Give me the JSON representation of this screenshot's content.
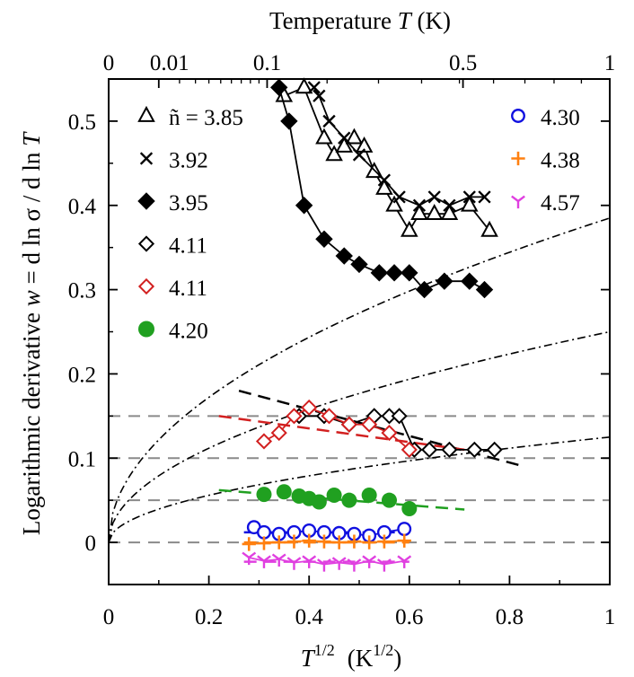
{
  "chart_data": {
    "type": "scatter",
    "title": "",
    "xlabel": {
      "base": "T",
      "exp": "1/2",
      "unit": "(K",
      "unit_exp": "1/2",
      "unit_close": ")"
    },
    "ylabel": {
      "prefix": "Logarithmic derivative  ",
      "w": "w",
      "rest": " = d ln σ  / d ln ",
      "T": "T"
    },
    "top_axis_label": {
      "prefix": "Temperature ",
      "T": "T",
      "unit": " (K)"
    },
    "xlim": [
      0,
      1
    ],
    "ylim": [
      -0.05,
      0.55
    ],
    "x_ticks": [
      0,
      0.2,
      0.4,
      0.6,
      0.8,
      1
    ],
    "x_tick_labels": [
      "0",
      "0.2",
      "0.4",
      "0.6",
      "0.8",
      "1"
    ],
    "y_ticks": [
      0,
      0.1,
      0.2,
      0.3,
      0.4,
      0.5
    ],
    "y_tick_labels": [
      "0",
      "0.1",
      "0.2",
      "0.3",
      "0.4",
      "0.5"
    ],
    "top_ticks": [
      0,
      0.01,
      0.1,
      0.5,
      1
    ],
    "top_tick_labels": [
      "0",
      "0.01",
      "0.1",
      "0.5",
      "1"
    ],
    "reference_lines_y": [
      0,
      0.05,
      0.1,
      0.15
    ],
    "sqrt_curves_coefficient": [
      0.385,
      0.25,
      0.125
    ],
    "series": [
      {
        "name": "ñ = 3.85",
        "marker": "triangle",
        "color": "#000000",
        "connected": true,
        "x": [
          0.35,
          0.39,
          0.43,
          0.45,
          0.47,
          0.49,
          0.51,
          0.53,
          0.55,
          0.57,
          0.6,
          0.62,
          0.65,
          0.68,
          0.72,
          0.76
        ],
        "y": [
          0.53,
          0.54,
          0.48,
          0.46,
          0.47,
          0.48,
          0.47,
          0.44,
          0.42,
          0.4,
          0.37,
          0.39,
          0.39,
          0.39,
          0.4,
          0.37
        ]
      },
      {
        "name": "3.92",
        "marker": "cross",
        "color": "#000000",
        "connected": true,
        "x": [
          0.41,
          0.42,
          0.44,
          0.47,
          0.5,
          0.55,
          0.58,
          0.62,
          0.65,
          0.68,
          0.72,
          0.75
        ],
        "y": [
          0.54,
          0.53,
          0.5,
          0.48,
          0.46,
          0.43,
          0.41,
          0.4,
          0.41,
          0.4,
          0.41,
          0.41
        ]
      },
      {
        "name": "3.95",
        "marker": "diamond-filled",
        "color": "#000000",
        "connected": true,
        "x": [
          0.34,
          0.36,
          0.39,
          0.43,
          0.47,
          0.5,
          0.54,
          0.57,
          0.6,
          0.63,
          0.67,
          0.72,
          0.75
        ],
        "y": [
          0.54,
          0.5,
          0.4,
          0.36,
          0.34,
          0.33,
          0.32,
          0.32,
          0.32,
          0.3,
          0.31,
          0.31,
          0.3
        ]
      },
      {
        "name": "4.11",
        "marker": "diamond-open",
        "color": "#000000",
        "connected": true,
        "x": [
          0.38,
          0.43,
          0.48,
          0.53,
          0.56,
          0.58,
          0.61,
          0.64,
          0.68,
          0.73,
          0.77
        ],
        "y": [
          0.15,
          0.15,
          0.14,
          0.15,
          0.15,
          0.15,
          0.11,
          0.11,
          0.11,
          0.11,
          0.11
        ]
      },
      {
        "name": "4.11",
        "marker": "diamond-open",
        "color": "#d22020",
        "connected": true,
        "x": [
          0.31,
          0.34,
          0.37,
          0.4,
          0.44,
          0.48,
          0.52,
          0.56,
          0.6
        ],
        "y": [
          0.12,
          0.13,
          0.15,
          0.16,
          0.15,
          0.14,
          0.14,
          0.13,
          0.11
        ]
      },
      {
        "name": "4.20",
        "marker": "circle-filled",
        "color": "#20a020",
        "connected": false,
        "x": [
          0.31,
          0.35,
          0.38,
          0.4,
          0.42,
          0.45,
          0.48,
          0.52,
          0.56,
          0.6
        ],
        "y": [
          0.057,
          0.06,
          0.055,
          0.052,
          0.048,
          0.056,
          0.05,
          0.056,
          0.05,
          0.04
        ]
      },
      {
        "name": "4.30",
        "marker": "circle-open",
        "color": "#1010e0",
        "connected": true,
        "x": [
          0.29,
          0.31,
          0.34,
          0.37,
          0.4,
          0.43,
          0.46,
          0.49,
          0.52,
          0.55,
          0.59
        ],
        "y": [
          0.018,
          0.012,
          0.01,
          0.012,
          0.014,
          0.012,
          0.011,
          0.01,
          0.008,
          0.012,
          0.016
        ]
      },
      {
        "name": "4.38",
        "marker": "plus",
        "color": "#ff8010",
        "connected": true,
        "x": [
          0.28,
          0.31,
          0.34,
          0.37,
          0.4,
          0.43,
          0.46,
          0.49,
          0.52,
          0.55,
          0.59
        ],
        "y": [
          -0.002,
          -0.001,
          0.0,
          0.001,
          0.002,
          0.001,
          0.0,
          0.001,
          0.0,
          0.001,
          0.002
        ]
      },
      {
        "name": "4.57",
        "marker": "tri-y",
        "color": "#e040e0",
        "connected": true,
        "x": [
          0.28,
          0.31,
          0.34,
          0.37,
          0.4,
          0.43,
          0.46,
          0.49,
          0.52,
          0.55,
          0.59
        ],
        "y": [
          -0.018,
          -0.022,
          -0.02,
          -0.024,
          -0.022,
          -0.026,
          -0.024,
          -0.026,
          -0.022,
          -0.026,
          -0.022
        ]
      }
    ],
    "fit_lines": [
      {
        "color": "#000000",
        "x": [
          0.26,
          0.83
        ],
        "y": [
          0.18,
          0.09
        ]
      },
      {
        "color": "#d22020",
        "x": [
          0.22,
          0.71
        ],
        "y": [
          0.15,
          0.11
        ]
      },
      {
        "color": "#20a020",
        "x": [
          0.22,
          0.71
        ],
        "y": [
          0.062,
          0.039
        ]
      },
      {
        "color": "#1010e0",
        "x": [
          0.27,
          0.6
        ],
        "y": [
          0.012,
          0.012
        ]
      },
      {
        "color": "#ff8010",
        "x": [
          0.27,
          0.6
        ],
        "y": [
          0.0,
          0.0
        ]
      },
      {
        "color": "#e040e0",
        "x": [
          0.27,
          0.6
        ],
        "y": [
          -0.023,
          -0.023
        ]
      }
    ],
    "legend": {
      "left_placement": "upper-left",
      "right_placement": "upper-right"
    }
  }
}
